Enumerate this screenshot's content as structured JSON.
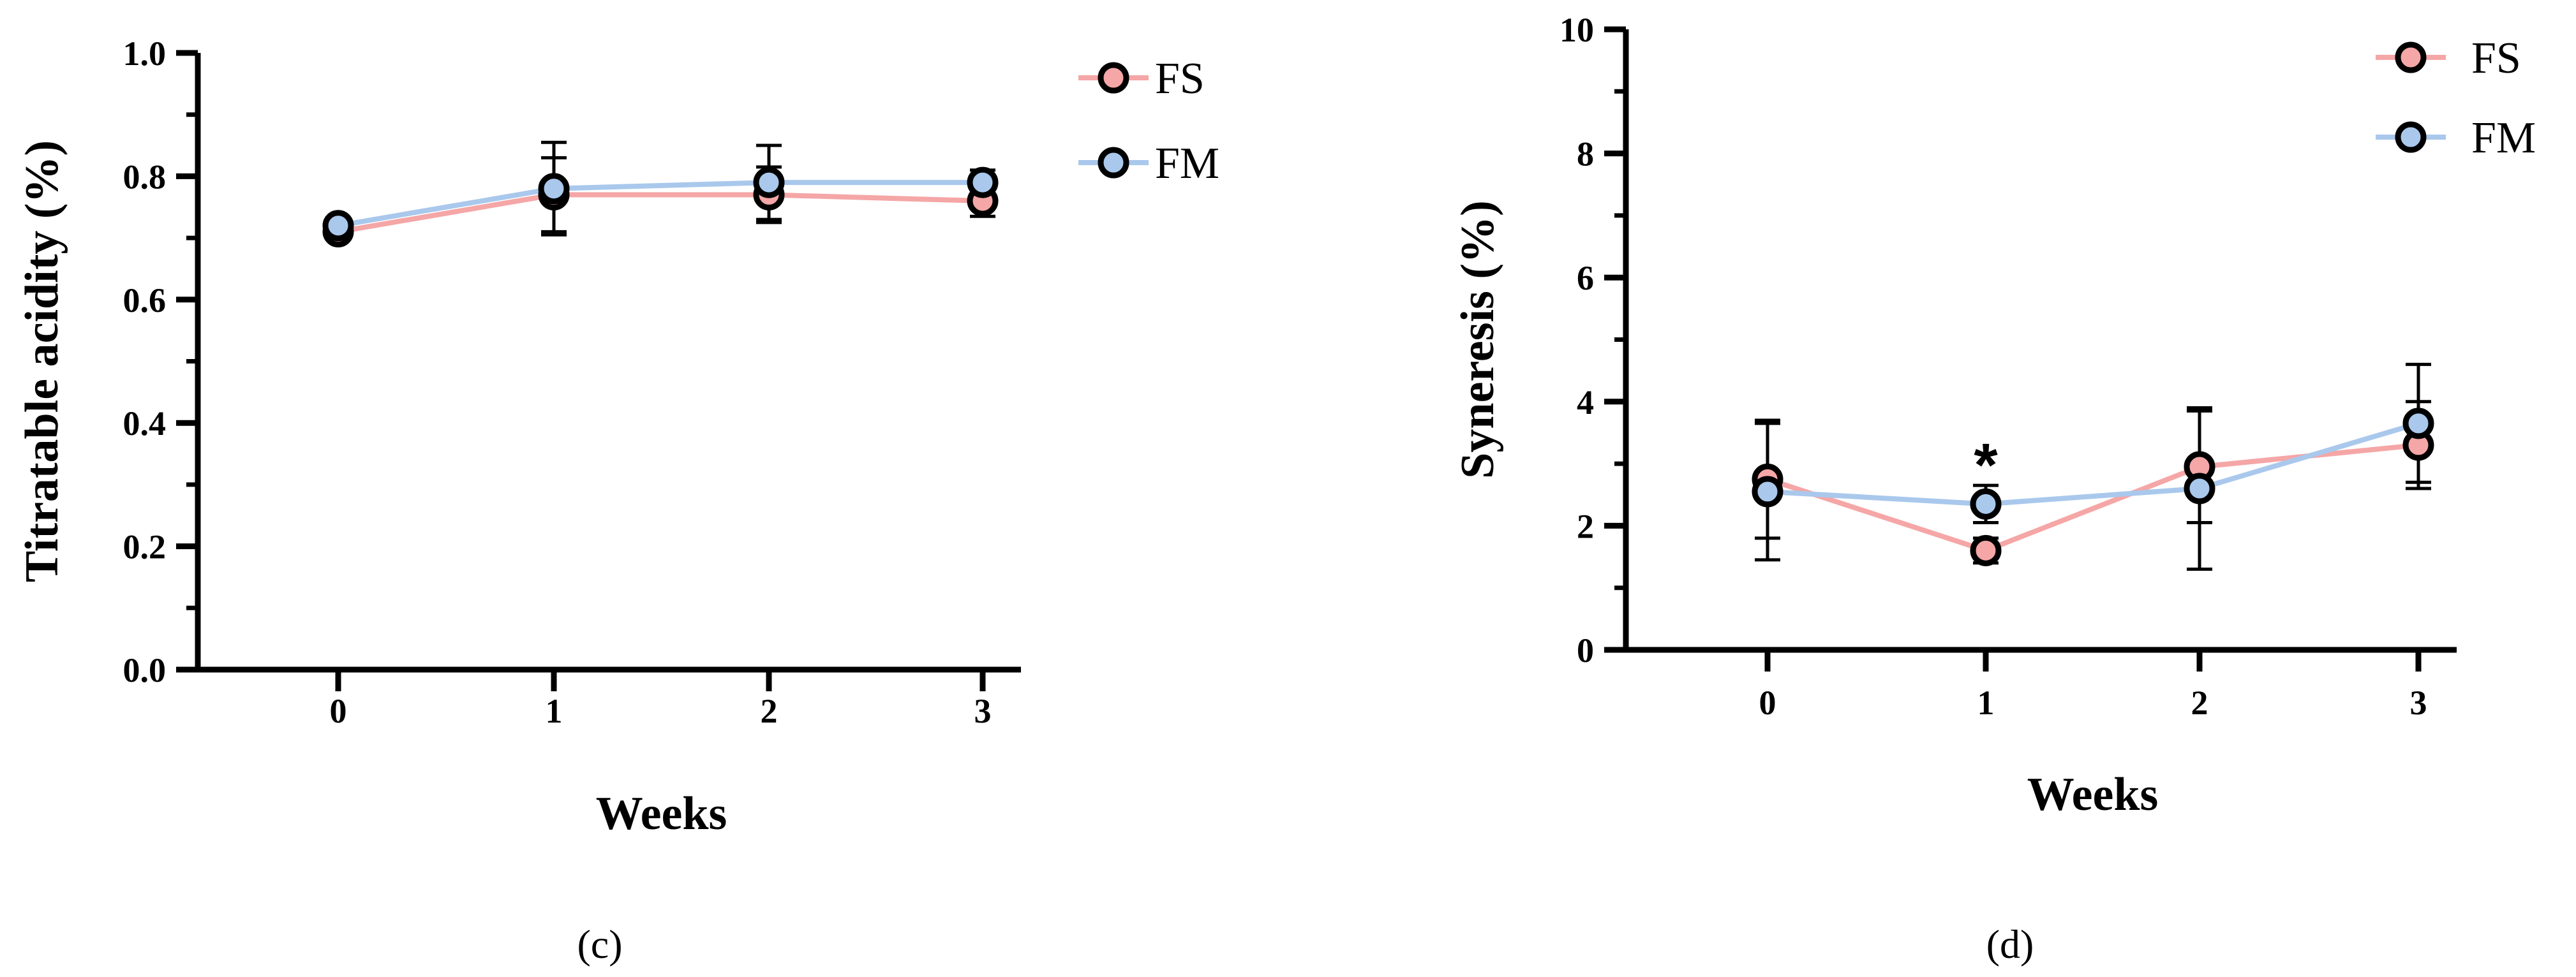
{
  "colors": {
    "FS": "#f5a6a6",
    "FM": "#a9c8ec",
    "marker_stroke": "#000000"
  },
  "chart_data": [
    {
      "type": "line",
      "panel_label": "(c)",
      "xlabel": "Weeks",
      "ylabel": "Titratable acidity (%)",
      "x": [
        0,
        1,
        2,
        3
      ],
      "x_tick_labels": [
        "0",
        "1",
        "2",
        "3"
      ],
      "ylim": [
        0.0,
        1.0
      ],
      "y_ticks": [
        0.0,
        0.2,
        0.4,
        0.6,
        0.8,
        1.0
      ],
      "y_tick_labels": [
        "0.0",
        "0.2",
        "0.4",
        "0.6",
        "0.8",
        "1.0"
      ],
      "y_minor_step": 0.1,
      "legend_position": "top-right",
      "series": [
        {
          "name": "FS",
          "values": [
            0.71,
            0.77,
            0.77,
            0.76
          ],
          "errors": [
            0.0,
            0.06,
            0.045,
            0.025
          ]
        },
        {
          "name": "FM",
          "values": [
            0.72,
            0.78,
            0.79,
            0.79
          ],
          "errors": [
            0.0,
            0.075,
            0.06,
            0.02
          ]
        }
      ],
      "annotations": []
    },
    {
      "type": "line",
      "panel_label": "(d)",
      "xlabel": "Weeks",
      "ylabel": "Syneresis (%)",
      "x": [
        0,
        1,
        2,
        3
      ],
      "x_tick_labels": [
        "0",
        "1",
        "2",
        "3"
      ],
      "ylim": [
        0,
        10
      ],
      "y_ticks": [
        0,
        2,
        4,
        6,
        8,
        10
      ],
      "y_tick_labels": [
        "0",
        "2",
        "4",
        "6",
        "8",
        "10"
      ],
      "y_minor_step": 1,
      "legend_position": "top-right",
      "series": [
        {
          "name": "FS",
          "values": [
            2.75,
            1.6,
            2.95,
            3.3
          ],
          "errors": [
            0.95,
            0.2,
            0.9,
            0.7
          ]
        },
        {
          "name": "FM",
          "values": [
            2.55,
            2.35,
            2.6,
            3.65
          ],
          "errors": [
            1.1,
            0.3,
            1.3,
            0.95
          ]
        }
      ],
      "annotations": [
        {
          "text": "*",
          "x": 1,
          "y": 3.05
        }
      ]
    }
  ]
}
